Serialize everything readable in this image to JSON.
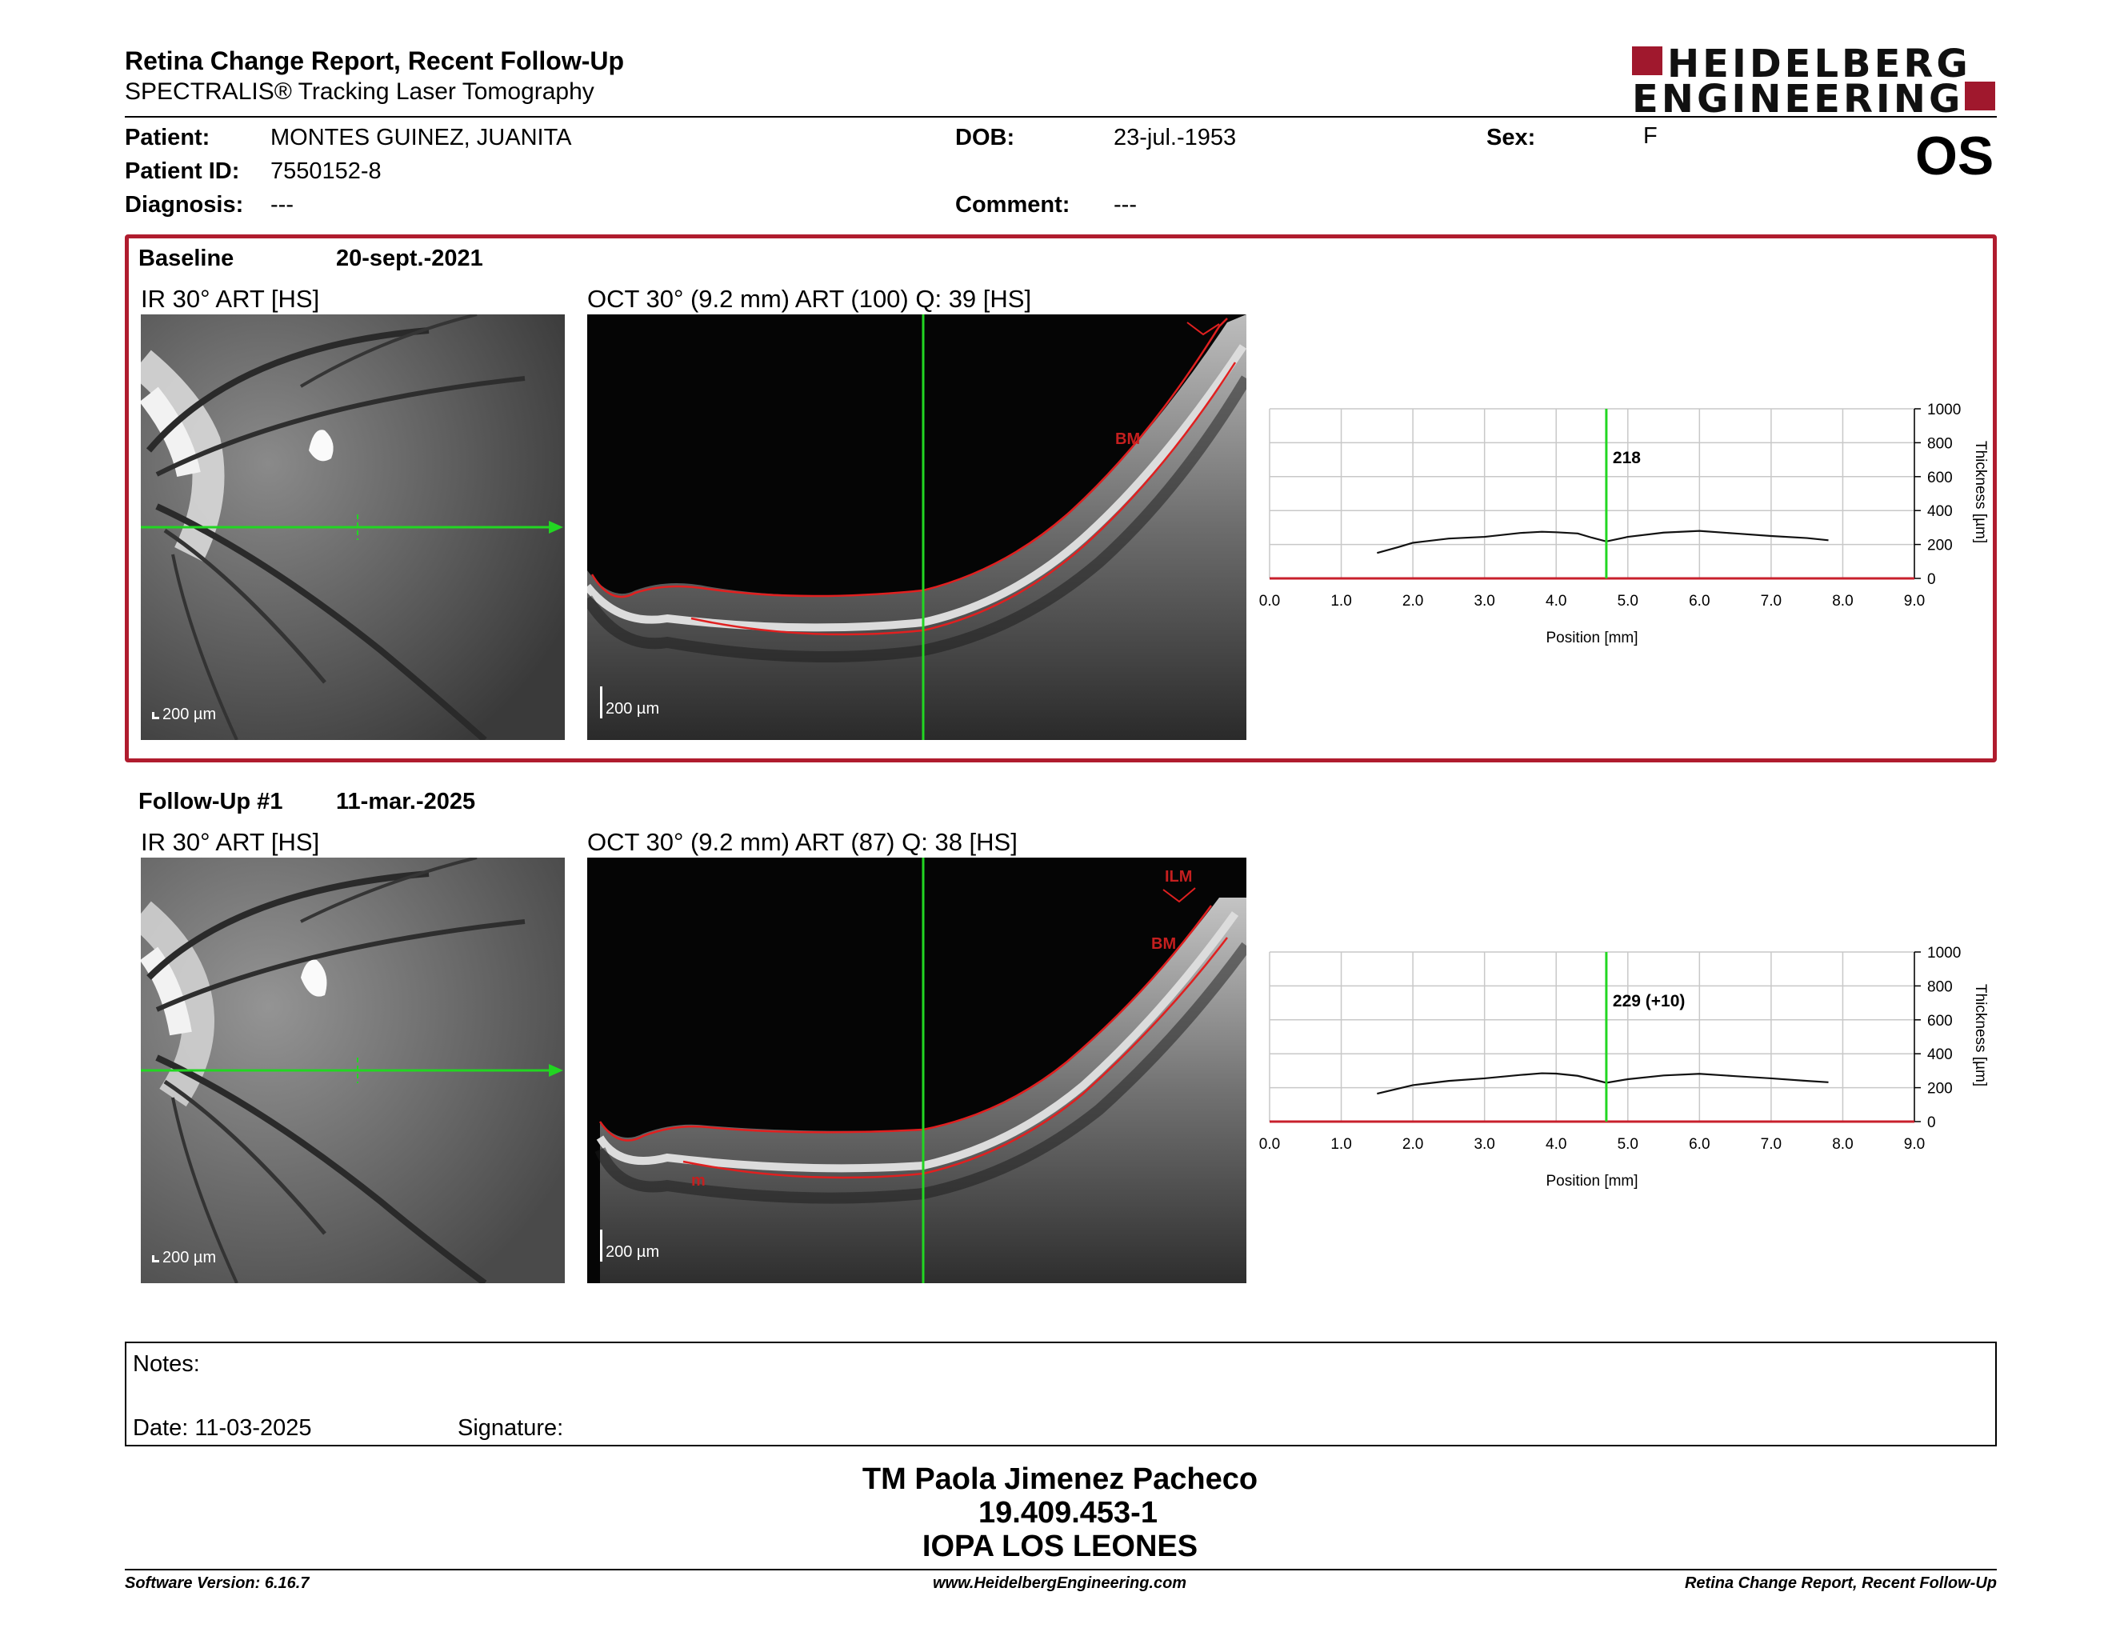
{
  "header": {
    "title": "Retina Change Report, Recent Follow-Up",
    "subtitle": "SPECTRALIS® Tracking Laser Tomography",
    "logo_line1": "HEIDELBERG",
    "logo_line2": "ENGINEERING"
  },
  "patient": {
    "name_label": "Patient:",
    "name": "MONTES GUINEZ, JUANITA",
    "id_label": "Patient ID:",
    "id": "7550152-8",
    "diagnosis_label": "Diagnosis:",
    "diagnosis": "---",
    "dob_label": "DOB:",
    "dob": "23-jul.-1953",
    "comment_label": "Comment:",
    "comment": "---",
    "sex_label": "Sex:",
    "sex": "F",
    "eye": "OS"
  },
  "exams": [
    {
      "label": "Baseline",
      "date": "20-sept.-2021",
      "ir_label": "IR 30° ART [HS]",
      "oct_label": "OCT 30° (9.2 mm) ART (100) Q: 39 [HS]",
      "scale": "200 µm",
      "oct_annotations": [
        "BM"
      ],
      "thickness_value": "218"
    },
    {
      "label": "Follow-Up #1",
      "date": "11-mar.-2025",
      "ir_label": "IR 30° ART [HS]",
      "oct_label": "OCT 30° (9.2 mm) ART (87) Q: 38 [HS]",
      "scale": "200 µm",
      "oct_annotations": [
        "ILM",
        "BM",
        "m"
      ],
      "thickness_value": "229 (+10)"
    }
  ],
  "chart_data": [
    {
      "type": "line",
      "title": "",
      "xlabel": "Position [mm]",
      "ylabel": "Thickness [µm]",
      "xlim": [
        0,
        9
      ],
      "ylim": [
        0,
        1000
      ],
      "xticks": [
        "0.0",
        "1.0",
        "2.0",
        "3.0",
        "4.0",
        "5.0",
        "6.0",
        "7.0",
        "8.0",
        "9.0"
      ],
      "yticks": [
        "0",
        "200",
        "400",
        "600",
        "800",
        "1000"
      ],
      "cursor_x": 4.7,
      "cursor_label": "218",
      "series": [
        {
          "x": [
            1.5,
            1.8,
            2.0,
            2.5,
            3.0,
            3.5,
            3.8,
            4.0,
            4.3,
            4.5,
            4.7,
            5.0,
            5.5,
            6.0,
            6.5,
            7.0,
            7.5,
            7.8
          ],
          "values": [
            150,
            185,
            210,
            235,
            245,
            268,
            275,
            272,
            265,
            240,
            218,
            245,
            270,
            280,
            265,
            250,
            238,
            225
          ]
        }
      ]
    },
    {
      "type": "line",
      "title": "",
      "xlabel": "Position [mm]",
      "ylabel": "Thickness [µm]",
      "xlim": [
        0,
        9
      ],
      "ylim": [
        0,
        1000
      ],
      "xticks": [
        "0.0",
        "1.0",
        "2.0",
        "3.0",
        "4.0",
        "5.0",
        "6.0",
        "7.0",
        "8.0",
        "9.0"
      ],
      "yticks": [
        "0",
        "200",
        "400",
        "600",
        "800",
        "1000"
      ],
      "cursor_x": 4.7,
      "cursor_label": "229 (+10)",
      "series": [
        {
          "x": [
            1.5,
            1.8,
            2.0,
            2.5,
            3.0,
            3.5,
            3.8,
            4.0,
            4.3,
            4.5,
            4.7,
            5.0,
            5.5,
            6.0,
            6.5,
            7.0,
            7.5,
            7.8
          ],
          "values": [
            165,
            195,
            215,
            240,
            255,
            275,
            285,
            283,
            270,
            250,
            229,
            250,
            272,
            282,
            268,
            255,
            240,
            232
          ]
        }
      ]
    }
  ],
  "notes": {
    "notes_label": "Notes:",
    "date_label": "Date: 11-03-2025",
    "signature_label": "Signature:"
  },
  "signer": {
    "name": "TM Paola Jimenez Pacheco",
    "rut": "19.409.453-1",
    "org": "IOPA LOS LEONES"
  },
  "footer": {
    "software": "Software Version: 6.16.7",
    "website": "www.HeidelbergEngineering.com",
    "report": "Retina Change Report, Recent Follow-Up"
  },
  "colors": {
    "accent": "#b01c2e",
    "cursor": "#22d622",
    "segmentation": "#e02020"
  }
}
